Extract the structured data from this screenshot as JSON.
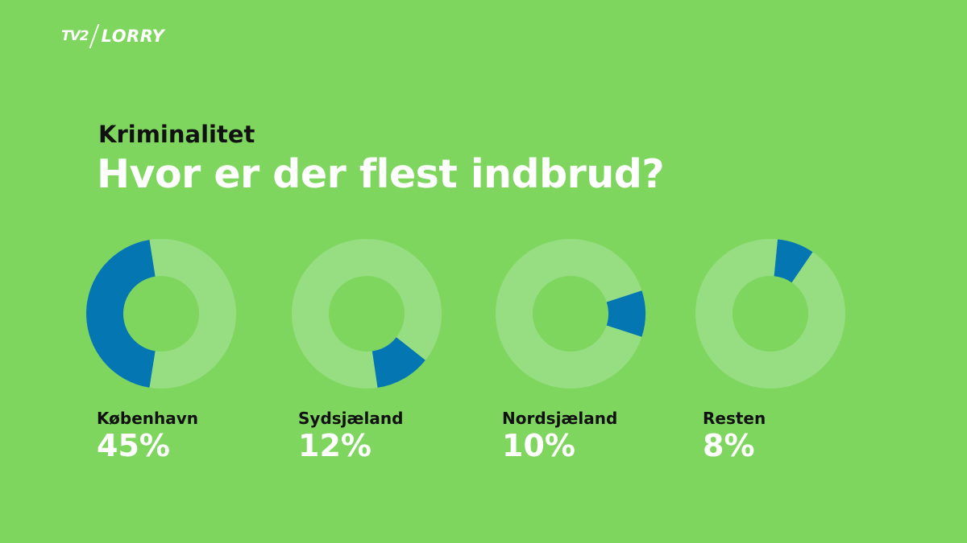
{
  "brand": {
    "tv2": "TV2",
    "name": "LORRY"
  },
  "header": {
    "kicker": "Kriminalitet",
    "title": "Hvor er der flest indbrud?"
  },
  "colors": {
    "background": "#7ED65E",
    "segment": "#0477B3",
    "track": "#97DE83"
  },
  "chart_data": {
    "type": "pie",
    "categories": [
      "København",
      "Sydsjæland",
      "Nordsjæland",
      "Resten"
    ],
    "values": [
      45,
      12,
      10,
      8
    ],
    "value_labels": [
      "45%",
      "12%",
      "10%",
      "8%"
    ],
    "unit": "%",
    "title": "Hvor er der flest indbrud?"
  }
}
